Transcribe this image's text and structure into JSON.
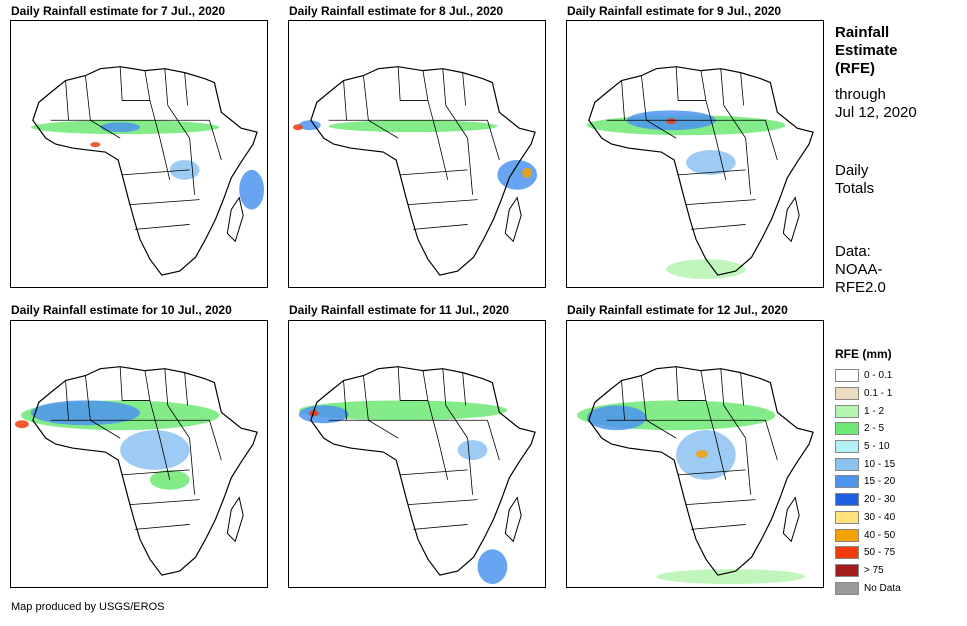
{
  "panels": [
    {
      "title": "Daily Rainfall estimate for 7 Jul., 2020"
    },
    {
      "title": "Daily Rainfall estimate for 8 Jul., 2020"
    },
    {
      "title": "Daily Rainfall estimate for 9 Jul., 2020"
    },
    {
      "title": "Daily Rainfall estimate for 10 Jul., 2020"
    },
    {
      "title": "Daily Rainfall estimate for 11 Jul., 2020"
    },
    {
      "title": "Daily Rainfall estimate for 12 Jul., 2020"
    }
  ],
  "side": {
    "line1": "Rainfall",
    "line2": "Estimate",
    "line3": "(RFE)",
    "through": "through",
    "date": "Jul 12, 2020",
    "totals1": "Daily",
    "totals2": "Totals",
    "data1": "Data:",
    "data2": "NOAA-",
    "data3": "RFE2.0"
  },
  "legend": {
    "title": "RFE (mm)",
    "items": [
      {
        "label": "0 - 0.1",
        "color": "#ffffff"
      },
      {
        "label": "0.1 - 1",
        "color": "#ecdcc0"
      },
      {
        "label": "1 - 2",
        "color": "#b5f5b0"
      },
      {
        "label": "2 - 5",
        "color": "#6ee874"
      },
      {
        "label": "5 - 10",
        "color": "#b2f1f5"
      },
      {
        "label": "10 - 15",
        "color": "#8cc2f2"
      },
      {
        "label": "15 - 20",
        "color": "#4c94ee"
      },
      {
        "label": "20 - 30",
        "color": "#1f5fe0"
      },
      {
        "label": "30 - 40",
        "color": "#ffe17d"
      },
      {
        "label": "40 - 50",
        "color": "#f5a200"
      },
      {
        "label": "50 - 75",
        "color": "#f03c0a"
      },
      {
        "label": "> 75",
        "color": "#a11c1c"
      },
      {
        "label": "No Data",
        "color": "#999999"
      }
    ]
  },
  "credit": "Map produced by USGS/EROS"
}
